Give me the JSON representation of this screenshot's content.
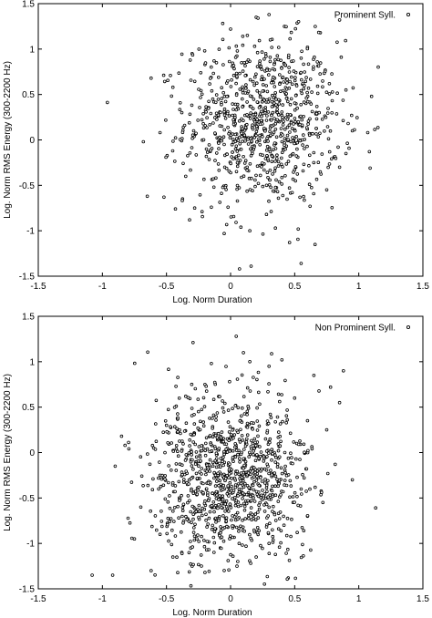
{
  "chart_data": [
    {
      "type": "scatter",
      "xlabel": "Log. Norm Duration",
      "ylabel": "Log. Norm RMS Energy (300-2200 Hz)",
      "xlim": [
        -1.5,
        1.5
      ],
      "ylim": [
        -1.5,
        1.5
      ],
      "xticks": [
        "-1.5",
        "-1",
        "-0.5",
        "0",
        "0.5",
        "1",
        "1.5"
      ],
      "yticks": [
        "-1.5",
        "-1",
        "-0.5",
        "0",
        "0.5",
        "1",
        "1.5"
      ],
      "legend_position": "top-right",
      "series": [
        {
          "name": "Prominent Syll.",
          "marker": "open-circle",
          "approx_mean": [
            0.25,
            0.2
          ],
          "approx_std": [
            0.3,
            0.45
          ],
          "approx_count": 900,
          "points": [
            [
              -0.62,
              0.68
            ],
            [
              -0.68,
              -0.02
            ],
            [
              -0.65,
              -0.62
            ],
            [
              -0.52,
              -0.63
            ],
            [
              -0.43,
              -0.76
            ],
            [
              -0.32,
              -0.88
            ],
            [
              -0.15,
              -0.74
            ],
            [
              -0.13,
              -0.52
            ],
            [
              -0.05,
              -1.03
            ],
            [
              -0.02,
              -0.74
            ],
            [
              0.08,
              -0.96
            ],
            [
              0.15,
              -1.0
            ],
            [
              0.28,
              -0.82
            ],
            [
              0.35,
              -0.97
            ],
            [
              0.46,
              -1.13
            ],
            [
              0.55,
              -1.36
            ],
            [
              0.16,
              -1.39
            ],
            [
              0.07,
              -1.42
            ],
            [
              0.3,
              1.38
            ],
            [
              0.42,
              1.25
            ],
            [
              0.7,
              1.18
            ],
            [
              0.85,
              1.32
            ],
            [
              1.07,
              0.08
            ],
            [
              1.1,
              0.48
            ],
            [
              0.9,
              0.55
            ],
            [
              0.85,
              -0.3
            ],
            [
              0.75,
              -0.55
            ],
            [
              0.62,
              -0.73
            ],
            [
              -0.38,
              0.3
            ],
            [
              -0.3,
              0.95
            ],
            [
              -0.45,
              0.58
            ],
            [
              -0.2,
              0.83
            ],
            [
              0.55,
              0.9
            ],
            [
              0.6,
              1.02
            ],
            [
              -0.55,
              0.08
            ],
            [
              -0.35,
              -0.4
            ],
            [
              0.9,
              -0.15
            ],
            [
              0.95,
              0.1
            ],
            [
              0.0,
              1.22
            ],
            [
              0.2,
              1.35
            ]
          ]
        }
      ]
    },
    {
      "type": "scatter",
      "xlabel": "Log. Norm Duration",
      "ylabel": "Log. Norm RMS Energy (300-2200 Hz)",
      "xlim": [
        -1.5,
        1.5
      ],
      "ylim": [
        -1.5,
        1.5
      ],
      "xticks": [
        "-1.5",
        "-1",
        "-0.5",
        "0",
        "0.5",
        "1",
        "1.5"
      ],
      "yticks": [
        "-1.5",
        "-1",
        "-0.5",
        "0",
        "0.5",
        "1",
        "1.5"
      ],
      "legend_position": "top-right",
      "series": [
        {
          "name": "Non Prominent Syll.",
          "marker": "open-circle",
          "approx_mean": [
            0.0,
            -0.25
          ],
          "approx_std": [
            0.3,
            0.45
          ],
          "approx_count": 1100,
          "points": [
            [
              -1.08,
              -1.35
            ],
            [
              -0.92,
              -1.35
            ],
            [
              -0.9,
              -0.15
            ],
            [
              -0.85,
              0.18
            ],
            [
              -0.75,
              -0.95
            ],
            [
              -0.7,
              -0.6
            ],
            [
              -0.62,
              -1.3
            ],
            [
              -0.55,
              -0.9
            ],
            [
              -0.45,
              -1.15
            ],
            [
              -0.38,
              -1.1
            ],
            [
              -0.3,
              -1.25
            ],
            [
              -0.2,
              -1.32
            ],
            [
              -0.08,
              -1.05
            ],
            [
              0.05,
              -1.25
            ],
            [
              0.2,
              -1.15
            ],
            [
              0.3,
              -1.0
            ],
            [
              0.45,
              -1.38
            ],
            [
              0.52,
              -0.88
            ],
            [
              0.6,
              -0.7
            ],
            [
              0.72,
              -0.55
            ],
            [
              0.85,
              0.55
            ],
            [
              0.88,
              0.9
            ],
            [
              0.95,
              -0.3
            ],
            [
              0.78,
              0.72
            ],
            [
              0.65,
              0.85
            ],
            [
              0.4,
              1.02
            ],
            [
              0.3,
              0.95
            ],
            [
              0.15,
              1.0
            ],
            [
              0.1,
              1.1
            ],
            [
              -0.15,
              0.98
            ],
            [
              -0.2,
              0.75
            ],
            [
              -0.35,
              0.62
            ],
            [
              -0.5,
              0.3
            ],
            [
              -0.6,
              0.05
            ],
            [
              -0.55,
              -0.25
            ],
            [
              0.75,
              0.25
            ],
            [
              0.5,
              0.6
            ],
            [
              -0.25,
              0.45
            ],
            [
              0.6,
              0.35
            ],
            [
              -0.4,
              -0.5
            ]
          ]
        }
      ]
    }
  ]
}
